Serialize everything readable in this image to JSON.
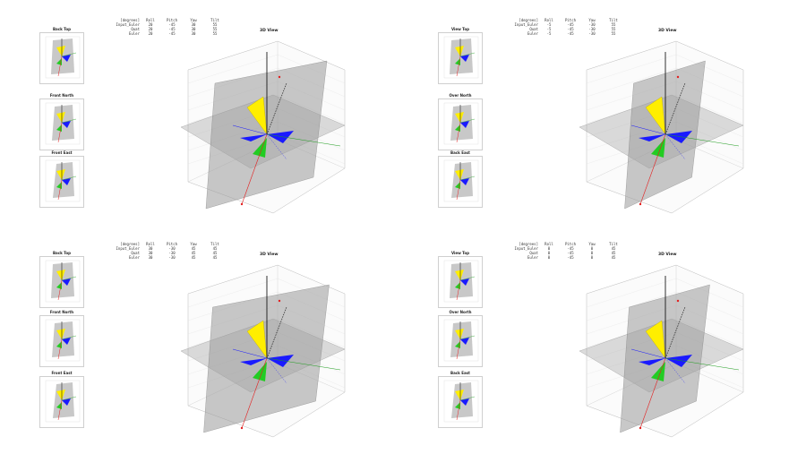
{
  "colors": {
    "x_axis": "#e32020",
    "y_axis": "#1e9e1e",
    "z_axis": "#1a1aff",
    "yellow": "#ffee00",
    "plane": "#9a9a9a"
  },
  "chart_data": [
    {
      "type": "scatter",
      "title": "3D View",
      "info_header": [
        "[degrees]",
        "Roll",
        "Pitch",
        "Yaw",
        "Tilt"
      ],
      "info_rows": [
        [
          "Input_Euler",
          "20",
          "-45",
          "30",
          "55"
        ],
        [
          "Quat",
          "20",
          "-45",
          "30",
          "55"
        ],
        [
          "Euler",
          "20",
          "-45",
          "30",
          "55"
        ]
      ],
      "views": [
        "Back Top",
        "Front North",
        "Front East"
      ],
      "plane_tilt": 20
    },
    {
      "type": "scatter",
      "title": "3D View",
      "info_header": [
        "[degrees]",
        "Roll",
        "Pitch",
        "Yaw",
        "Tilt"
      ],
      "info_rows": [
        [
          "Input_Euler",
          "-5",
          "-45",
          "-30",
          "55"
        ],
        [
          "Quat",
          "-5",
          "-45",
          "-30",
          "55"
        ],
        [
          "Euler",
          "-5",
          "-45",
          "-30",
          "55"
        ]
      ],
      "views": [
        "View Top",
        "Over North",
        "Back East"
      ],
      "plane_tilt": -25
    },
    {
      "type": "scatter",
      "title": "3D View",
      "info_header": [
        "[degrees]",
        "Roll",
        "Pitch",
        "Yaw",
        "Tilt"
      ],
      "info_rows": [
        [
          "Input_Euler",
          "30",
          "-30",
          "45",
          "45"
        ],
        [
          "Quat",
          "30",
          "-30",
          "45",
          "45"
        ],
        [
          "Euler",
          "30",
          "-30",
          "45",
          "45"
        ]
      ],
      "views": [
        "Back Top",
        "Front North",
        "Front East"
      ],
      "plane_tilt": 25
    },
    {
      "type": "scatter",
      "title": "3D View",
      "info_header": [
        "[degrees]",
        "Roll",
        "Pitch",
        "Yaw",
        "Tilt"
      ],
      "info_rows": [
        [
          "Input_Euler",
          "0",
          "-45",
          "0",
          "45"
        ],
        [
          "Quat",
          "0",
          "-45",
          "0",
          "45"
        ],
        [
          "Euler",
          "0",
          "-45",
          "0",
          "45"
        ]
      ],
      "views": [
        "View Top",
        "Over North",
        "Back East"
      ],
      "plane_tilt": -15
    }
  ]
}
